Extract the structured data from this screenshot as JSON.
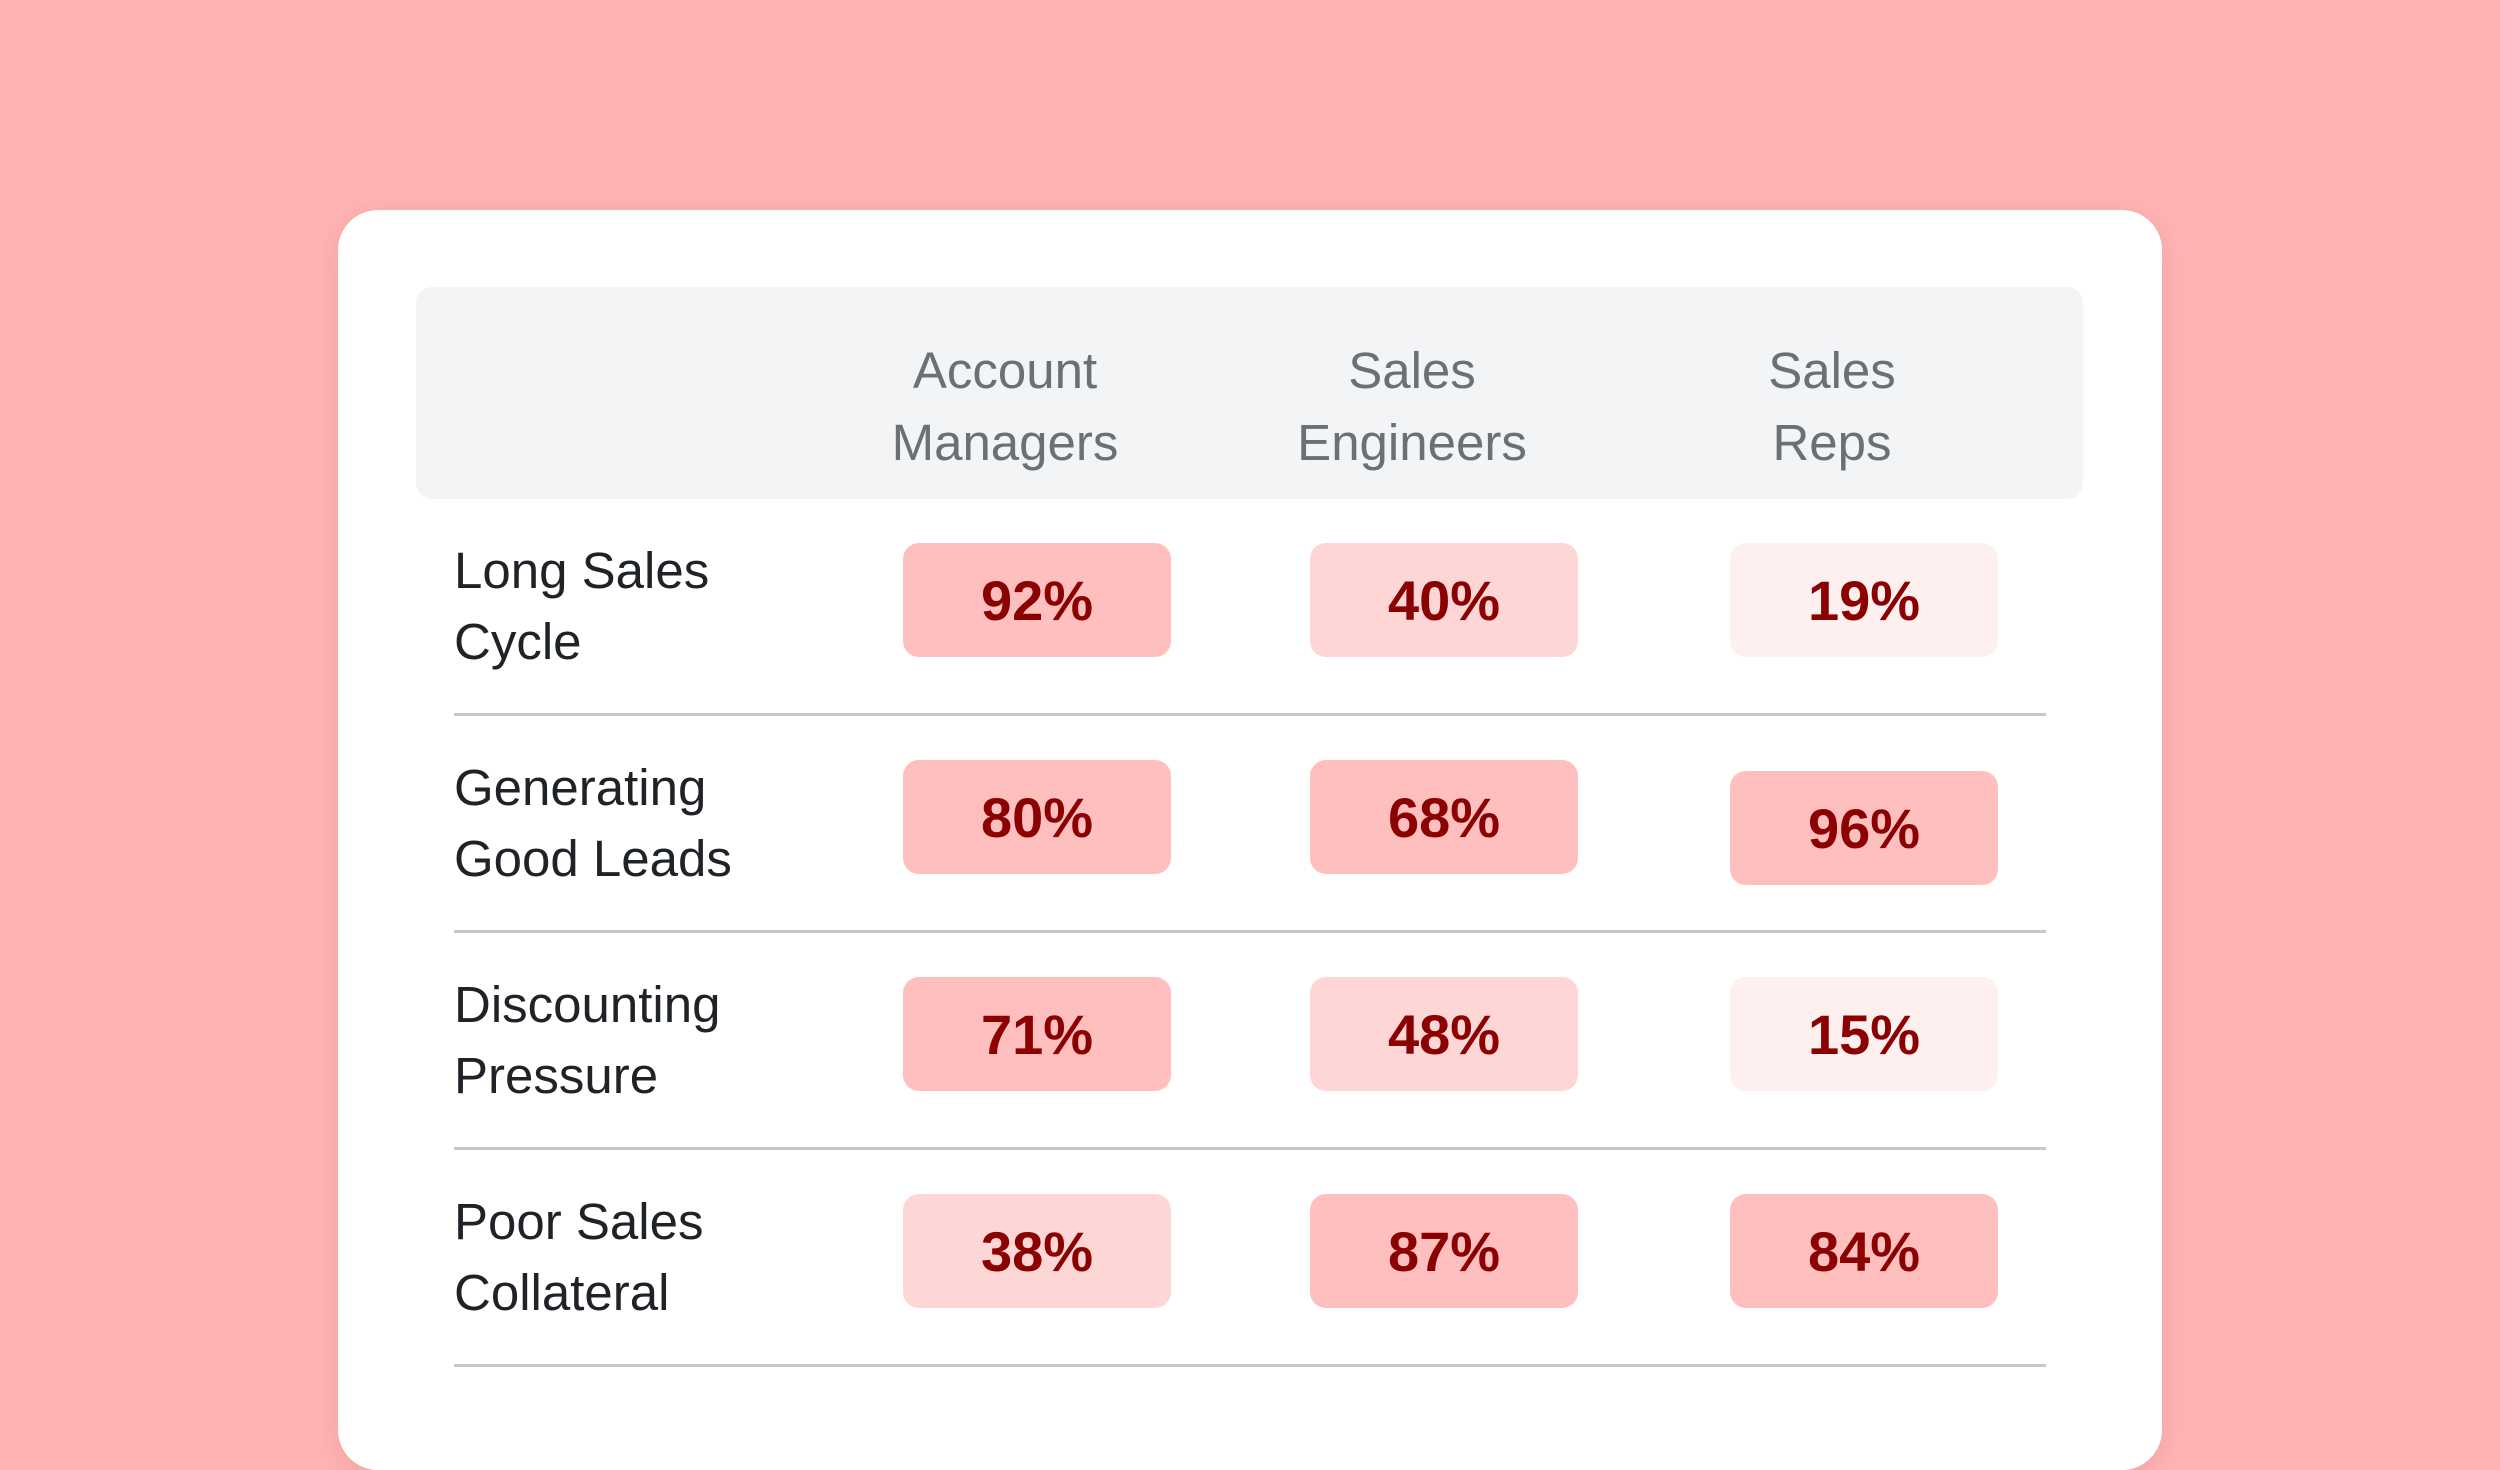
{
  "chart_data": {
    "type": "table",
    "columns": [
      "Account\nManagers",
      "Sales\nEngineers",
      "Sales\nReps"
    ],
    "rows": [
      {
        "label": "Long Sales\nCycle",
        "values": [
          92,
          40,
          19
        ],
        "display": [
          "92%",
          "40%",
          "19%"
        ]
      },
      {
        "label": "Generating\nGood Leads",
        "values": [
          80,
          68,
          96
        ],
        "display": [
          "80%",
          "68%",
          "96%"
        ]
      },
      {
        "label": "Discounting\nPressure",
        "values": [
          71,
          48,
          15
        ],
        "display": [
          "71%",
          "48%",
          "15%"
        ]
      },
      {
        "label": "Poor Sales\nCollateral",
        "values": [
          38,
          87,
          84
        ],
        "display": [
          "38%",
          "87%",
          "84%"
        ]
      }
    ],
    "colors": {
      "background": "#ffb3b3",
      "value_text": "#8b0000",
      "cell_high": "#ffbfbf",
      "cell_mid": "#ffd6d6",
      "cell_low": "#fff0f0"
    }
  }
}
